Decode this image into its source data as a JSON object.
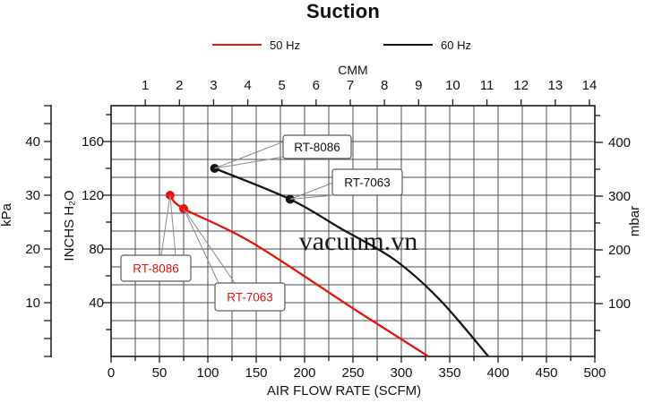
{
  "title": "Suction",
  "watermark": "vacuum.vn",
  "legend": {
    "items": [
      {
        "label": "50 Hz",
        "color": "#e8140c"
      },
      {
        "label": "60 Hz",
        "color": "#141414"
      }
    ]
  },
  "chart_data": {
    "type": "line",
    "title": "Suction",
    "axes": {
      "bottom": {
        "label": "AIR FLOW RATE (SCFM)",
        "ticks": [
          0,
          50,
          100,
          150,
          200,
          250,
          300,
          350,
          400,
          450,
          500
        ],
        "range": [
          0,
          500
        ]
      },
      "top": {
        "label": "CMM",
        "ticks": [
          1,
          2,
          3,
          4,
          5,
          6,
          7,
          8,
          9,
          10,
          11,
          12,
          13,
          14
        ]
      },
      "left_inner": {
        "label": "INCHS H₂O",
        "ticks": [
          160,
          120,
          80,
          40
        ],
        "range": [
          0,
          186.7
        ]
      },
      "left_outer": {
        "label": "kPa",
        "ticks": [
          40,
          30,
          20,
          10
        ],
        "range": [
          0,
          46.7
        ]
      },
      "right": {
        "label": "mbar",
        "ticks": [
          400,
          300,
          200,
          100
        ],
        "range": [
          0,
          466
        ]
      }
    },
    "grid": {
      "cols": 20,
      "rows": 14
    },
    "series": [
      {
        "name": "50 Hz",
        "color": "#e8140c",
        "points_scfm_inchs": [
          [
            61,
            120
          ],
          [
            75,
            110
          ],
          [
            145,
            85
          ],
          [
            256,
            33
          ],
          [
            328,
            0
          ]
        ],
        "marked_points": [
          {
            "label": "RT-8086",
            "scfm": 61,
            "inchs": 120
          },
          {
            "label": "RT-7063",
            "scfm": 75,
            "inchs": 110
          }
        ]
      },
      {
        "name": "60 Hz",
        "color": "#141414",
        "points_scfm_inchs": [
          [
            107,
            140
          ],
          [
            185,
            117
          ],
          [
            238,
            95
          ],
          [
            293,
            72
          ],
          [
            340,
            42
          ],
          [
            390,
            0
          ]
        ],
        "marked_points": [
          {
            "label": "RT-8086",
            "scfm": 107,
            "inchs": 140
          },
          {
            "label": "RT-7063",
            "scfm": 185,
            "inchs": 117
          }
        ]
      }
    ]
  }
}
